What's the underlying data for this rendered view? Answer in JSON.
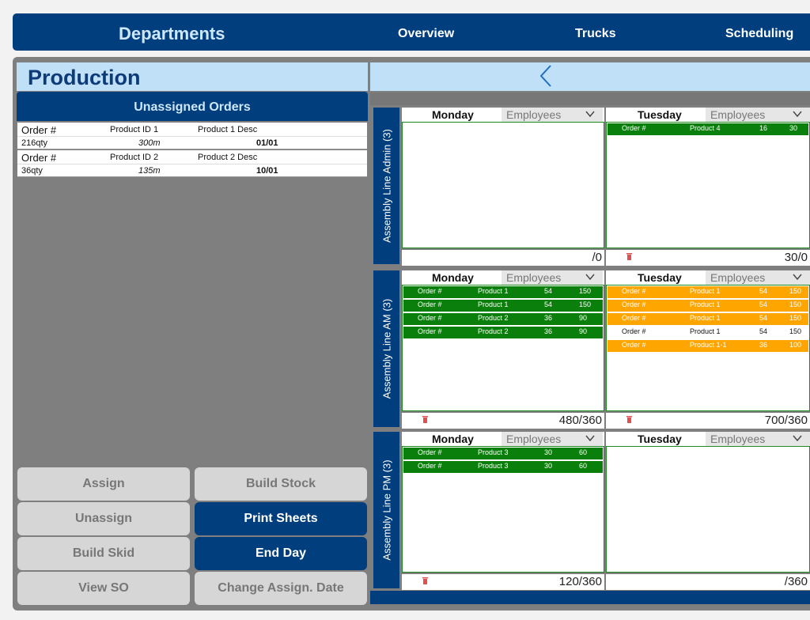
{
  "nav": {
    "brand": "Departments",
    "items": [
      "Overview",
      "Trucks",
      "Scheduling"
    ]
  },
  "page": {
    "title": "Production"
  },
  "unassigned": {
    "title": "Unassigned Orders",
    "orders": [
      {
        "order": "Order #",
        "product_id": "Product ID 1",
        "product_desc": "Product 1 Desc",
        "qty": "216qty",
        "length": "300m",
        "date": "01/01"
      },
      {
        "order": "Order #",
        "product_id": "Product ID 2",
        "product_desc": "Product 2 Desc",
        "qty": "36qty",
        "length": "135m",
        "date": "10/01"
      }
    ]
  },
  "buttons": {
    "assign": "Assign",
    "build_stock": "Build Stock",
    "unassign": "Unassign",
    "print_sheets": "Print Sheets",
    "build_skid": "Build Skid",
    "end_day": "End Day",
    "view_so": "View SO",
    "change_assign_date": "Change Assign. Date"
  },
  "schedule": {
    "employees_placeholder": "Employees",
    "lines": [
      {
        "label": "Assembly Line Admin (3)",
        "days": [
          {
            "day": "Monday",
            "total": "/0",
            "orders": []
          },
          {
            "day": "Tuesday",
            "total": "30/0",
            "orders": [
              {
                "order": "Order #",
                "product": "Product 4",
                "a": "16",
                "b": "30",
                "color": "green"
              }
            ]
          }
        ]
      },
      {
        "label": "Assembly Line AM (3)",
        "days": [
          {
            "day": "Monday",
            "total": "480/360",
            "orders": [
              {
                "order": "Order #",
                "product": "Product 1",
                "a": "54",
                "b": "150",
                "color": "green"
              },
              {
                "order": "Order #",
                "product": "Product 1",
                "a": "54",
                "b": "150",
                "color": "green"
              },
              {
                "order": "Order #",
                "product": "Product 2",
                "a": "36",
                "b": "90",
                "color": "green"
              },
              {
                "order": "Order #",
                "product": "Product 2",
                "a": "36",
                "b": "90",
                "color": "green"
              }
            ]
          },
          {
            "day": "Tuesday",
            "total": "700/360",
            "orders": [
              {
                "order": "Order #",
                "product": "Product 1",
                "a": "54",
                "b": "150",
                "color": "orange"
              },
              {
                "order": "Order #",
                "product": "Product 1",
                "a": "54",
                "b": "150",
                "color": "orange"
              },
              {
                "order": "Order #",
                "product": "Product 1",
                "a": "54",
                "b": "150",
                "color": "orange"
              },
              {
                "order": "Order #",
                "product": "Product 1",
                "a": "54",
                "b": "150",
                "color": "white"
              },
              {
                "order": "Order #",
                "product": "Product 1-1",
                "a": "36",
                "b": "100",
                "color": "orange"
              }
            ]
          }
        ]
      },
      {
        "label": "Assembly Line PM (3)",
        "days": [
          {
            "day": "Monday",
            "total": "120/360",
            "orders": [
              {
                "order": "Order #",
                "product": "Product 3",
                "a": "30",
                "b": "60",
                "color": "green"
              },
              {
                "order": "Order #",
                "product": "Product 3",
                "a": "30",
                "b": "60",
                "color": "green"
              }
            ]
          },
          {
            "day": "Tuesday",
            "total": "/360",
            "orders": []
          }
        ]
      }
    ]
  },
  "colors": {
    "navy": "#003e7e",
    "light_blue": "#bfe0f7",
    "green": "#0b7f0b",
    "orange": "#ffa500",
    "grey": "#7f7f7f"
  }
}
